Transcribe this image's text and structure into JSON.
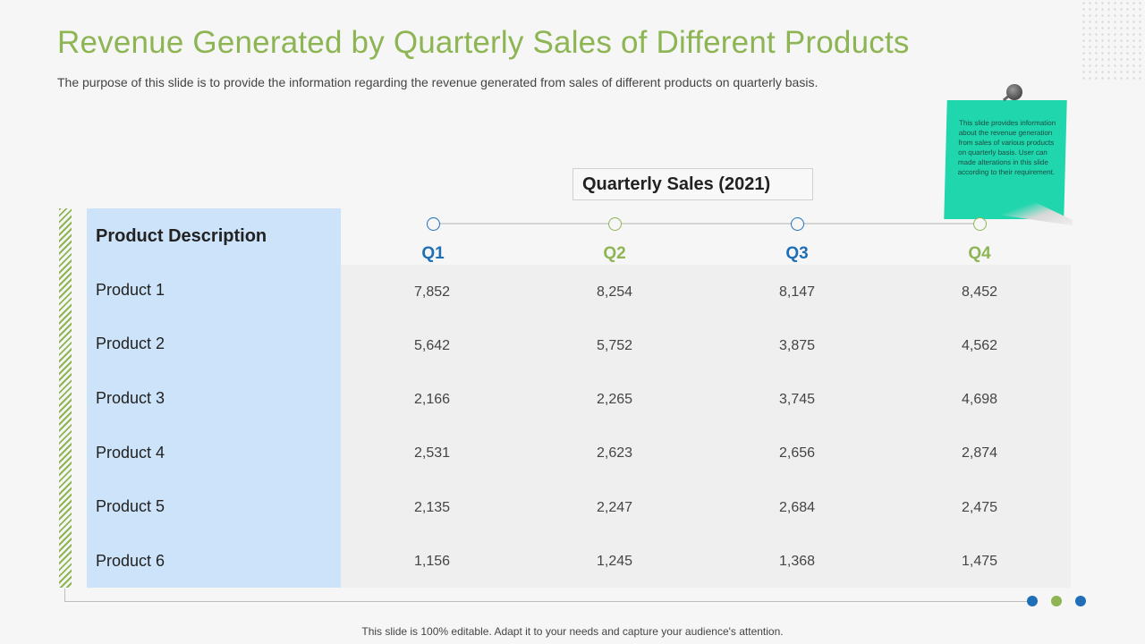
{
  "slide": {
    "title": "Revenue Generated by Quarterly Sales of Different Products",
    "subtitle": "The purpose of this slide is to provide the information regarding the revenue generated from sales of different products on quarterly basis.",
    "footer": "This slide is 100% editable. Adapt it to your needs and capture your audience's attention."
  },
  "note": {
    "text": "This slide provides information about the revenue generation from sales of various products on quarterly basis. User can made alterations in this slide according to their requirement."
  },
  "table": {
    "group_title": "Quarterly Sales (2021)",
    "row_header": "Product Description",
    "quarters": [
      "Q1",
      "Q2",
      "Q3",
      "Q4"
    ],
    "rows": [
      {
        "label": "Product 1",
        "values": [
          "7,852",
          "8,254",
          "8,147",
          "8,452"
        ]
      },
      {
        "label": "Product 2",
        "values": [
          "5,642",
          "5,752",
          "3,875",
          "4,562"
        ]
      },
      {
        "label": "Product 3",
        "values": [
          "2,166",
          "2,265",
          "3,745",
          "4,698"
        ]
      },
      {
        "label": "Product 4",
        "values": [
          "2,531",
          "2,623",
          "2,656",
          "2,874"
        ]
      },
      {
        "label": "Product 5",
        "values": [
          "2,135",
          "2,247",
          "2,684",
          "2,475"
        ]
      },
      {
        "label": "Product 6",
        "values": [
          "1,156",
          "1,245",
          "1,368",
          "1,475"
        ]
      }
    ]
  },
  "colors": {
    "green": "#8db553",
    "blue": "#1f6fb8",
    "note": "#1fd6ad",
    "desc_bg": "#cce3f9"
  }
}
